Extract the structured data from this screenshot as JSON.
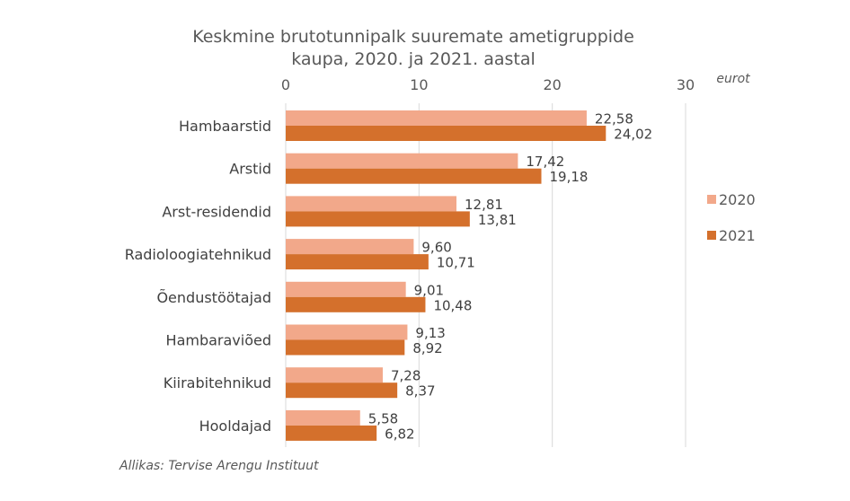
{
  "chart_data": {
    "type": "bar",
    "orientation": "horizontal",
    "title_lines": [
      "Keskmine brutotunnipalk suuremate ametigruppide",
      "kaupa, 2020. ja 2021. aastal"
    ],
    "unit_label": "eurot",
    "source": "Allikas: Tervise Arengu Instituut",
    "categories": [
      "Hambaarstid",
      "Arstid",
      "Arst-residendid",
      "Radioloogiatehnikud",
      "Õendustöötajad",
      "Hambaraviõed",
      "Kiirabitehnikud",
      "Hooldajad"
    ],
    "series": [
      {
        "name": "2020",
        "color": "#F2A88A",
        "values": [
          22.58,
          17.42,
          12.81,
          9.6,
          9.01,
          9.13,
          7.28,
          5.58
        ],
        "labels": [
          "22,58",
          "17,42",
          "12,81",
          "9,60",
          "9,01",
          "9,13",
          "7,28",
          "5,58"
        ]
      },
      {
        "name": "2021",
        "color": "#D4702C",
        "values": [
          24.02,
          19.18,
          13.81,
          10.71,
          10.48,
          8.92,
          8.37,
          6.82
        ],
        "labels": [
          "24,02",
          "19,18",
          "13,81",
          "10,71",
          "10,48",
          "8,92",
          "8,37",
          "6,82"
        ]
      }
    ],
    "xlim": [
      0,
      30
    ],
    "xticks": [
      0,
      10,
      20,
      30
    ],
    "xtick_labels": [
      "0",
      "10",
      "20",
      "30"
    ],
    "grid": true,
    "legend_position": "right"
  }
}
